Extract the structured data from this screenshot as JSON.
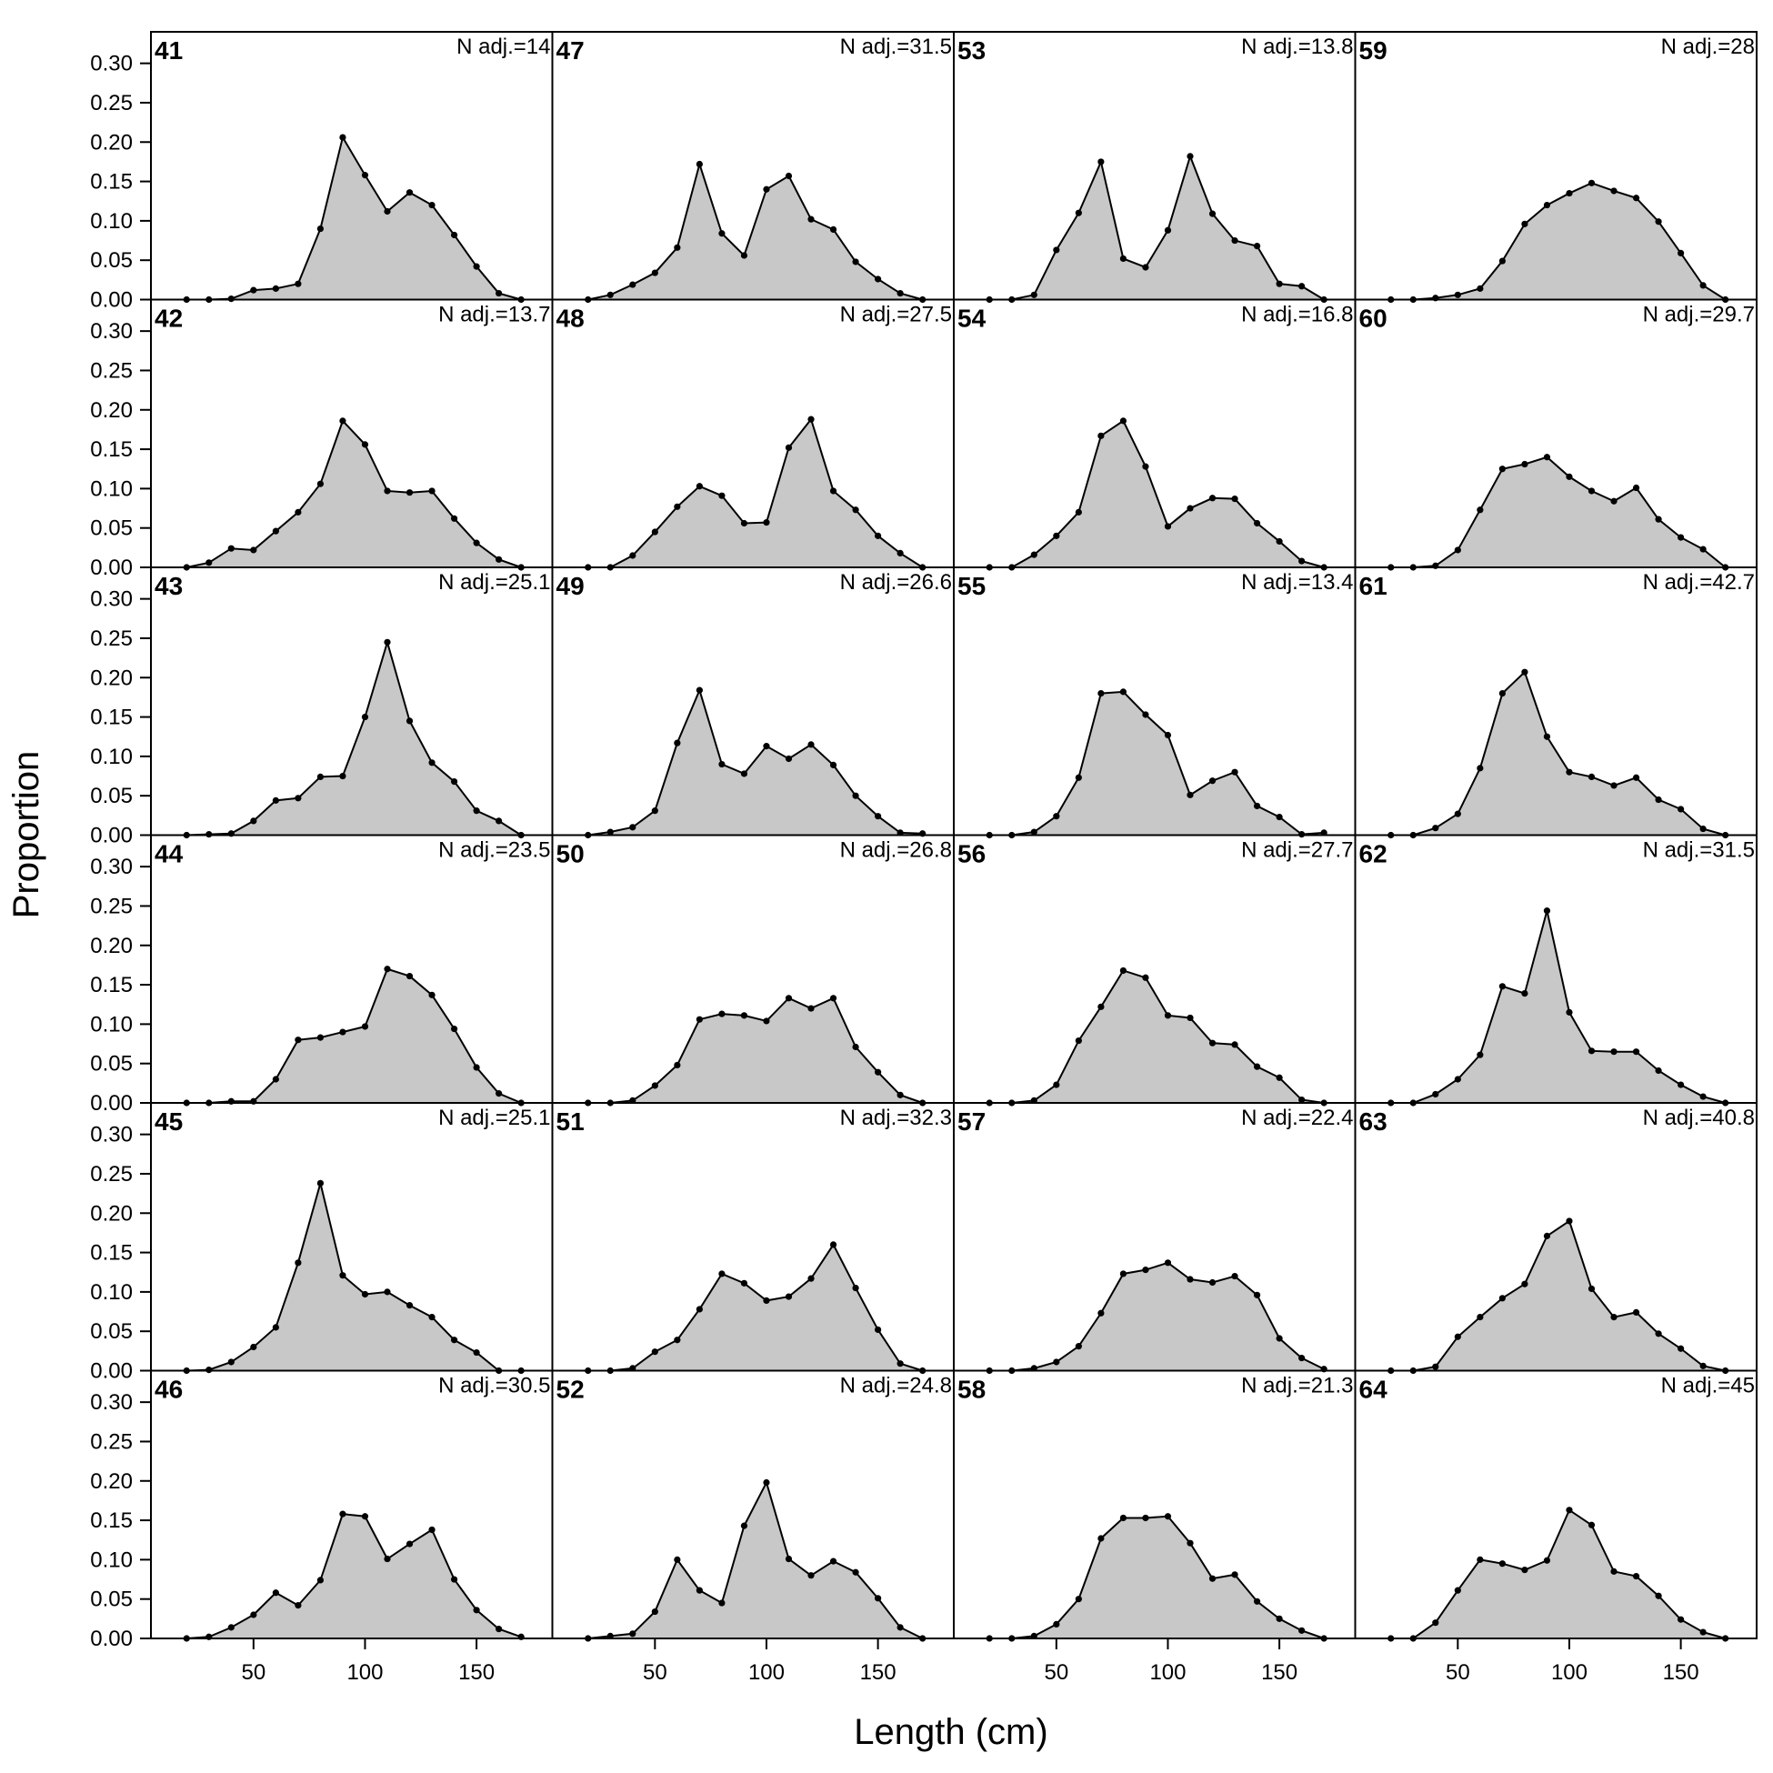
{
  "chart_data": {
    "type": "area",
    "xlabel": "Length (cm)",
    "ylabel": "Proportion",
    "xlim": [
      4,
      184
    ],
    "ylim": [
      0,
      0.34
    ],
    "xticks": [
      50,
      100,
      150
    ],
    "xtick_labels": [
      "50",
      "100",
      "150"
    ],
    "yticks": [
      0,
      0.05,
      0.1,
      0.15,
      0.2,
      0.25,
      0.3
    ],
    "ytick_labels": [
      "0.00",
      "0.05",
      "0.10",
      "0.15",
      "0.20",
      "0.25",
      "0.30"
    ],
    "grid": false,
    "fill_color": "#c8c8c8",
    "line_color": "#000000",
    "x": [
      20,
      30,
      40,
      50,
      60,
      70,
      80,
      90,
      100,
      110,
      120,
      130,
      140,
      150,
      160,
      170
    ],
    "panels": [
      {
        "id": "41",
        "n_label": "N adj.=14",
        "values": [
          0,
          0,
          0.001,
          0.012,
          0.014,
          0.02,
          0.09,
          0.206,
          0.158,
          0.112,
          0.136,
          0.12,
          0.082,
          0.042,
          0.008,
          0
        ]
      },
      {
        "id": "42",
        "n_label": "N adj.=13.7",
        "values": [
          0,
          0.006,
          0.024,
          0.022,
          0.046,
          0.07,
          0.106,
          0.186,
          0.156,
          0.097,
          0.095,
          0.097,
          0.062,
          0.031,
          0.01,
          0
        ]
      },
      {
        "id": "43",
        "n_label": "N adj.=25.1",
        "values": [
          0,
          0.001,
          0.002,
          0.018,
          0.044,
          0.047,
          0.074,
          0.075,
          0.15,
          0.245,
          0.145,
          0.092,
          0.068,
          0.031,
          0.018,
          0
        ]
      },
      {
        "id": "44",
        "n_label": "N adj.=23.5",
        "values": [
          0,
          0,
          0.002,
          0.002,
          0.03,
          0.08,
          0.083,
          0.09,
          0.097,
          0.17,
          0.161,
          0.137,
          0.094,
          0.045,
          0.012,
          0
        ]
      },
      {
        "id": "45",
        "n_label": "N adj.=25.1",
        "values": [
          0,
          0.001,
          0.011,
          0.03,
          0.055,
          0.137,
          0.238,
          0.121,
          0.097,
          0.1,
          0.083,
          0.068,
          0.039,
          0.023,
          0,
          0
        ]
      },
      {
        "id": "46",
        "n_label": "N adj.=30.5",
        "values": [
          0,
          0.002,
          0.014,
          0.03,
          0.058,
          0.042,
          0.074,
          0.158,
          0.155,
          0.101,
          0.12,
          0.138,
          0.075,
          0.036,
          0.012,
          0.002
        ]
      },
      {
        "id": "47",
        "n_label": "N adj.=31.5",
        "values": [
          0,
          0.006,
          0.019,
          0.034,
          0.066,
          0.172,
          0.084,
          0.056,
          0.14,
          0.157,
          0.102,
          0.089,
          0.048,
          0.026,
          0.008,
          0
        ]
      },
      {
        "id": "48",
        "n_label": "N adj.=27.5",
        "values": [
          0,
          0,
          0.015,
          0.045,
          0.077,
          0.103,
          0.091,
          0.056,
          0.057,
          0.152,
          0.188,
          0.097,
          0.073,
          0.04,
          0.018,
          0
        ]
      },
      {
        "id": "49",
        "n_label": "N adj.=26.6",
        "values": [
          0,
          0.004,
          0.01,
          0.031,
          0.117,
          0.184,
          0.09,
          0.078,
          0.113,
          0.097,
          0.115,
          0.089,
          0.05,
          0.024,
          0.003,
          0.002
        ]
      },
      {
        "id": "50",
        "n_label": "N adj.=26.8",
        "values": [
          0,
          0,
          0.003,
          0.022,
          0.048,
          0.106,
          0.113,
          0.111,
          0.104,
          0.133,
          0.12,
          0.133,
          0.071,
          0.039,
          0.01,
          0
        ]
      },
      {
        "id": "51",
        "n_label": "N adj.=32.3",
        "values": [
          0,
          0,
          0.003,
          0.024,
          0.039,
          0.078,
          0.123,
          0.111,
          0.089,
          0.094,
          0.117,
          0.16,
          0.105,
          0.052,
          0.009,
          0
        ]
      },
      {
        "id": "52",
        "n_label": "N adj.=24.8",
        "values": [
          0,
          0.003,
          0.006,
          0.034,
          0.1,
          0.061,
          0.045,
          0.143,
          0.198,
          0.101,
          0.08,
          0.098,
          0.084,
          0.051,
          0.014,
          0
        ]
      },
      {
        "id": "53",
        "n_label": "N adj.=13.8",
        "values": [
          0,
          0,
          0.006,
          0.063,
          0.11,
          0.175,
          0.052,
          0.041,
          0.088,
          0.182,
          0.109,
          0.075,
          0.068,
          0.02,
          0.017,
          0
        ]
      },
      {
        "id": "54",
        "n_label": "N adj.=16.8",
        "values": [
          0,
          0,
          0.016,
          0.04,
          0.07,
          0.167,
          0.186,
          0.128,
          0.052,
          0.075,
          0.088,
          0.087,
          0.056,
          0.033,
          0.008,
          0
        ]
      },
      {
        "id": "55",
        "n_label": "N adj.=13.4",
        "values": [
          0,
          0,
          0.004,
          0.024,
          0.073,
          0.18,
          0.182,
          0.153,
          0.127,
          0.051,
          0.069,
          0.08,
          0.037,
          0.023,
          0.001,
          0.003
        ]
      },
      {
        "id": "56",
        "n_label": "N adj.=27.7",
        "values": [
          0,
          0,
          0.003,
          0.023,
          0.079,
          0.122,
          0.168,
          0.159,
          0.111,
          0.108,
          0.076,
          0.074,
          0.046,
          0.032,
          0.004,
          0
        ]
      },
      {
        "id": "57",
        "n_label": "N adj.=22.4",
        "values": [
          0,
          0,
          0.003,
          0.011,
          0.031,
          0.073,
          0.123,
          0.128,
          0.137,
          0.116,
          0.112,
          0.12,
          0.096,
          0.041,
          0.016,
          0.002
        ]
      },
      {
        "id": "58",
        "n_label": "N adj.=21.3",
        "values": [
          0,
          0,
          0.003,
          0.018,
          0.05,
          0.127,
          0.153,
          0.153,
          0.155,
          0.121,
          0.076,
          0.081,
          0.047,
          0.025,
          0.01,
          0
        ]
      },
      {
        "id": "59",
        "n_label": "N adj.=28",
        "values": [
          0,
          0,
          0.002,
          0.006,
          0.014,
          0.049,
          0.096,
          0.12,
          0.135,
          0.148,
          0.138,
          0.129,
          0.099,
          0.059,
          0.018,
          0
        ]
      },
      {
        "id": "60",
        "n_label": "N adj.=29.7",
        "values": [
          0,
          0,
          0.002,
          0.022,
          0.073,
          0.125,
          0.131,
          0.14,
          0.115,
          0.097,
          0.084,
          0.101,
          0.061,
          0.038,
          0.023,
          0
        ]
      },
      {
        "id": "61",
        "n_label": "N adj.=42.7",
        "values": [
          0,
          0,
          0.009,
          0.027,
          0.085,
          0.18,
          0.207,
          0.125,
          0.08,
          0.074,
          0.063,
          0.073,
          0.045,
          0.033,
          0.008,
          0
        ]
      },
      {
        "id": "62",
        "n_label": "N adj.=31.5",
        "values": [
          0,
          0,
          0.011,
          0.03,
          0.061,
          0.148,
          0.139,
          0.244,
          0.115,
          0.066,
          0.065,
          0.065,
          0.041,
          0.023,
          0.008,
          0
        ]
      },
      {
        "id": "63",
        "n_label": "N adj.=40.8",
        "values": [
          0,
          0,
          0.005,
          0.043,
          0.068,
          0.092,
          0.11,
          0.171,
          0.19,
          0.104,
          0.068,
          0.074,
          0.047,
          0.028,
          0.006,
          0
        ]
      },
      {
        "id": "64",
        "n_label": "N adj.=45",
        "values": [
          0,
          0,
          0.02,
          0.061,
          0.1,
          0.095,
          0.087,
          0.099,
          0.163,
          0.144,
          0.085,
          0.079,
          0.054,
          0.024,
          0.008,
          0
        ]
      }
    ]
  }
}
